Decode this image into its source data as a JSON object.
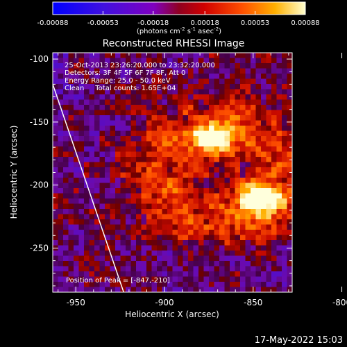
{
  "colorbar": {
    "ticks": [
      "-0.00088",
      "-0.00053",
      "-0.00018",
      "0.00018",
      "0.00053",
      "0.00088"
    ],
    "unit_prefix": "(photons cm",
    "unit_sup1": "-2",
    "unit_mid": " s",
    "unit_sup2": "-1",
    "unit_mid2": " asec",
    "unit_sup3": "-2",
    "unit_suffix": ")",
    "range": [
      -0.00088,
      0.00088
    ]
  },
  "chart_data": {
    "type": "heatmap",
    "title": "Reconstructed RHESSI Image",
    "xlabel": "Heliocentric X (arcsec)",
    "ylabel": "Heliocentric Y (arcsec)",
    "xlim": [
      -963,
      -828
    ],
    "ylim": [
      -285,
      -95
    ],
    "x_ticks": [
      -950,
      -900,
      -850,
      -800
    ],
    "y_ticks": [
      -100,
      -150,
      -200,
      -250
    ],
    "x_tick_labels": [
      "-950",
      "-900",
      "-850",
      "-800"
    ],
    "y_tick_labels": [
      "-100",
      "-150",
      "-200",
      "-250"
    ],
    "annotations": [
      "25-Oct-2013 23:26:20.000 to 23:32:20.000",
      "Detectors: 3F 4F 5F 6F 7F 8F, Att 0",
      "Energy Range: 25.0 - 50.0 keV",
      "Clean     Total counts: 1.65E+04"
    ],
    "peak_label": "Position of Peak = [-847,-210]",
    "peaks": [
      {
        "x": -872,
        "y": -163,
        "value": 0.0008
      },
      {
        "x": -847,
        "y": -210,
        "value": 0.00088
      }
    ],
    "limb_line": [
      {
        "x": -963,
        "y": -120
      },
      {
        "x": -923,
        "y": -285
      }
    ],
    "colormap": [
      "#0000ff",
      "#8000d0",
      "#a00000",
      "#ff2000",
      "#ffa000",
      "#ffff80",
      "#ffffff"
    ]
  },
  "footer": {
    "timestamp": "17-May-2022 15:03"
  }
}
